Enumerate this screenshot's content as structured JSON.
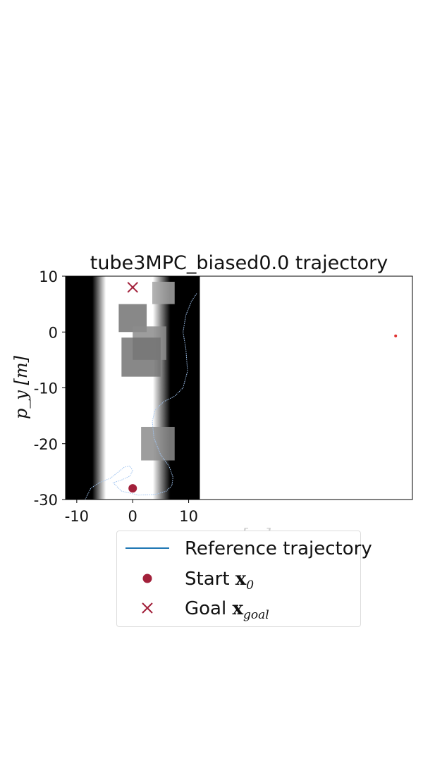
{
  "chart_data": {
    "type": "line",
    "title": "tube3MPC_biased0.0 trajectory",
    "xlabel": "p_x [m]",
    "ylabel": "p_y [m]",
    "xlim": [
      -12,
      50
    ],
    "ylim": [
      -30,
      10
    ],
    "xticks": [
      -10,
      0,
      10
    ],
    "yticks": [
      10,
      0,
      -10,
      -20,
      -30
    ],
    "xtick_labels": [
      "-10",
      "0",
      "10"
    ],
    "ytick_labels": [
      "10",
      "0",
      "-10",
      "-20",
      "-30"
    ],
    "grid": false,
    "legend_placement": "below",
    "background_map": {
      "x_extent": [
        -12,
        12
      ],
      "free_lane_x": [
        -5,
        5
      ],
      "obstacle_squares": [
        {
          "cx": 0,
          "cy": 2.5,
          "half": 2.5,
          "level": 0.55
        },
        {
          "cx": 3,
          "cy": -2,
          "half": 3,
          "level": 0.45
        },
        {
          "cx": 1.5,
          "cy": -4.5,
          "half": 3.5,
          "level": 0.55
        },
        {
          "cx": 4.5,
          "cy": -20,
          "half": 3,
          "level": 0.45
        },
        {
          "cx": 5.5,
          "cy": 7,
          "half": 2,
          "level": 0.35
        }
      ]
    },
    "series": [
      {
        "name": "Reference trajectory",
        "x": [
          -8.5,
          -7.5,
          -6,
          -4,
          -2.5,
          -1.5,
          -0.5,
          0,
          -0.5,
          -2,
          -3.5,
          -2,
          1,
          4,
          6,
          7,
          7.2,
          6.5,
          5,
          3.8,
          3.5,
          4,
          5.5,
          7.5,
          9,
          9.8,
          9.5,
          9,
          9.5,
          10.5,
          11.5
        ],
        "y": [
          -30,
          -28,
          -27,
          -26.2,
          -25,
          -24.2,
          -24,
          -24.8,
          -25.8,
          -26.5,
          -27,
          -28.5,
          -29.2,
          -29.1,
          -28.5,
          -27.5,
          -26,
          -24,
          -22,
          -19,
          -16,
          -14,
          -12.5,
          -11.5,
          -10,
          -7,
          -3,
          0,
          3,
          5.5,
          7
        ]
      }
    ],
    "markers": [
      {
        "name": "Start x_0",
        "x": 0,
        "y": -28,
        "color": "#a2203a"
      },
      {
        "name": "Goal x_goal",
        "x": 0,
        "y": 8,
        "color": "#a2203a"
      },
      {
        "x": 47,
        "y": -0.7,
        "color": "#e0302f"
      }
    ],
    "colors": {
      "reference": "#1f77b4",
      "start": "#a2203a",
      "goal": "#a2203a",
      "trace": "#a0c4f0"
    }
  },
  "legend": {
    "reference_label": "Reference trajectory",
    "start_label": "Start",
    "start_math": "x",
    "start_sub": "0",
    "goal_label": "Goal",
    "goal_math": "x",
    "goal_sub": "goal"
  }
}
